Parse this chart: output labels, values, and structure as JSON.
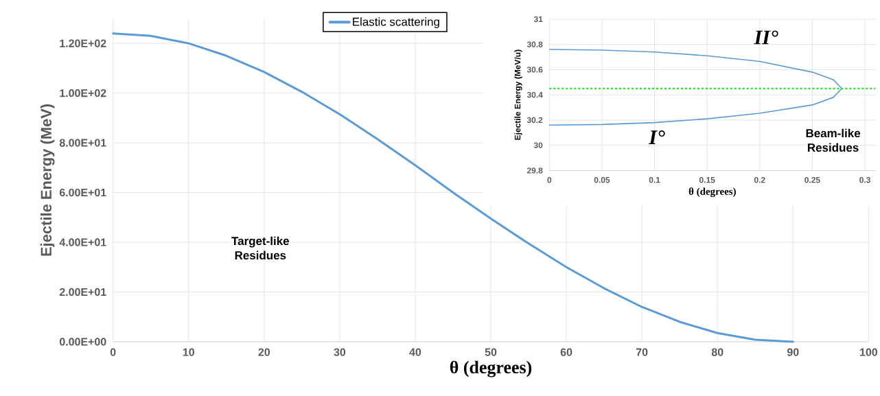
{
  "chart_data": [
    {
      "type": "line",
      "xlabel": "θ (degrees)",
      "ylabel": "Ejectile Energy (MeV)",
      "xlim": [
        0,
        100
      ],
      "ylim": [
        0,
        130
      ],
      "xticks": [
        0,
        10,
        20,
        30,
        40,
        50,
        60,
        70,
        80,
        90,
        100
      ],
      "yticks": [
        {
          "value": 0,
          "label": "0.00E+00"
        },
        {
          "value": 20,
          "label": "2.00E+01"
        },
        {
          "value": 40,
          "label": "4.00E+01"
        },
        {
          "value": 60,
          "label": "6.00E+01"
        },
        {
          "value": 80,
          "label": "8.00E+01"
        },
        {
          "value": 100,
          "label": "1.00E+02"
        },
        {
          "value": 120,
          "label": "1.20E+02"
        }
      ],
      "grid": true,
      "legend": "top",
      "marker": "none",
      "line_style": "solid",
      "x": [
        0,
        5,
        10,
        15,
        20,
        25,
        30,
        35,
        40,
        45,
        50,
        55,
        60,
        65,
        70,
        75,
        80,
        85,
        90
      ],
      "series": [
        {
          "name": "Elastic scattering",
          "color": "#5b9bd5",
          "values": [
            124,
            123,
            120,
            115,
            108.5,
            100.5,
            91.5,
            81.5,
            71,
            60,
            49.5,
            39.5,
            30,
            21.5,
            14,
            8,
            3.5,
            0.8,
            0
          ]
        }
      ],
      "annotations": [
        "Target-like Residues"
      ]
    },
    {
      "type": "line",
      "xlabel": "θ (degrees)",
      "ylabel": "Ejectile Energy (MeV/u)",
      "xlim": [
        0,
        0.31
      ],
      "ylim": [
        29.8,
        31
      ],
      "xticks": [
        0,
        0.05,
        0.1,
        0.15,
        0.2,
        0.25,
        0.3
      ],
      "yticks": [
        29.8,
        30,
        30.2,
        30.4,
        30.6,
        30.8,
        31
      ],
      "grid": true,
      "marker": "none",
      "line_style": "solid",
      "series": [
        {
          "color": "#5b9bd5",
          "x": [
            0,
            0.05,
            0.1,
            0.15,
            0.2,
            0.25,
            0.27,
            0.278,
            0.27,
            0.25,
            0.2,
            0.15,
            0.1,
            0.05,
            0
          ],
          "values": [
            30.76,
            30.755,
            30.74,
            30.71,
            30.665,
            30.58,
            30.52,
            30.45,
            30.38,
            30.32,
            30.254,
            30.21,
            30.18,
            30.165,
            30.16
          ]
        }
      ],
      "ref_lines": [
        {
          "axis": "y",
          "value": 30.45,
          "color": "#33dd33",
          "line_style": "dotted"
        }
      ],
      "annotations": [
        "II°",
        "I°",
        "Beam-like Residues"
      ]
    }
  ]
}
